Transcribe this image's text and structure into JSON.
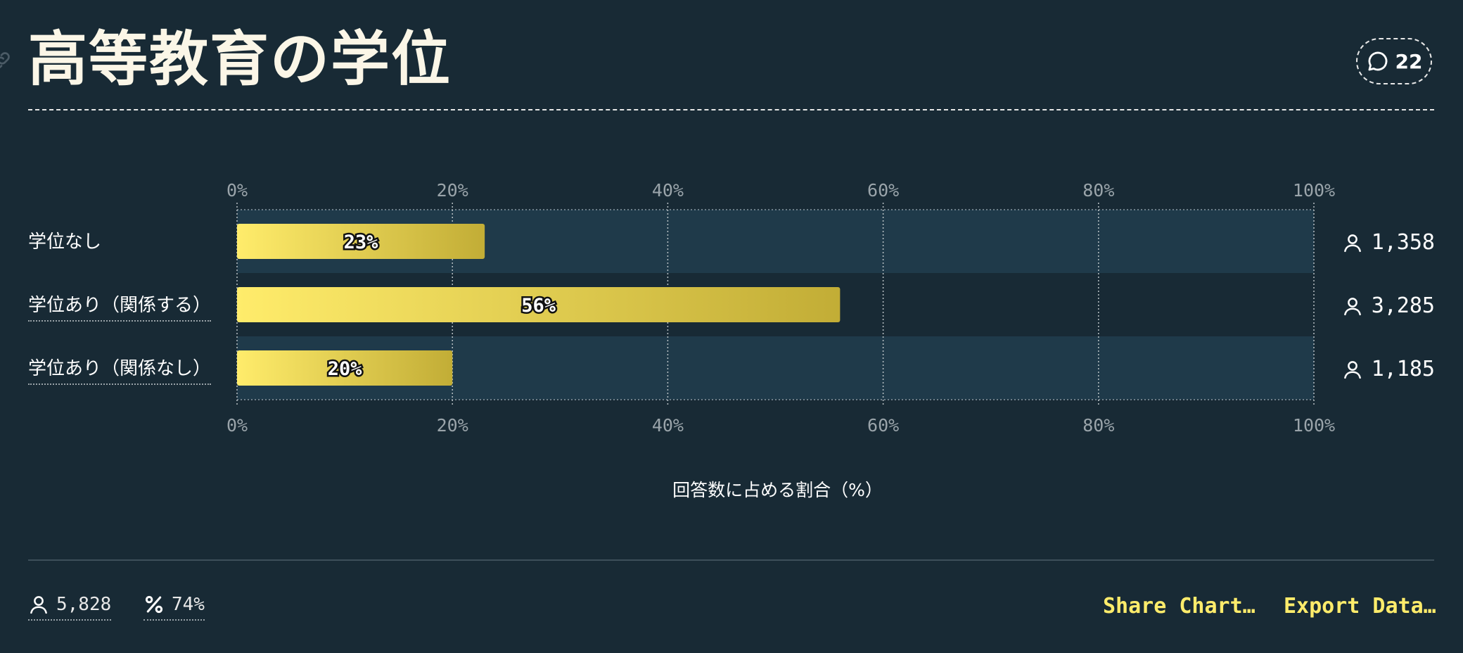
{
  "title": "高等教育の学位",
  "comments": {
    "count": "22",
    "icon": "speech-bubble-icon"
  },
  "chart_data": {
    "type": "bar",
    "orientation": "horizontal",
    "categories": [
      "学位なし",
      "学位あり（関係する）",
      "学位あり（関係なし）"
    ],
    "values": [
      23,
      56,
      20
    ],
    "value_labels": [
      "23%",
      "56%",
      "20%"
    ],
    "respondent_counts": [
      "1,358",
      "3,285",
      "1,185"
    ],
    "xlabel": "回答数に占める割合（%）",
    "xlim": [
      0,
      100
    ],
    "xticks": [
      "0%",
      "20%",
      "40%",
      "60%",
      "80%",
      "100%"
    ],
    "grid": true,
    "bar_color_start": "#ffec6b",
    "bar_color_end": "#c2ad36",
    "stripe_color": "#1f3a4a"
  },
  "footer": {
    "respondents": "5,828",
    "percent": "74%",
    "share_label": "Share Chart…",
    "export_label": "Export Data…"
  },
  "colors": {
    "background": "#182a35",
    "accent": "#ffec6b"
  }
}
